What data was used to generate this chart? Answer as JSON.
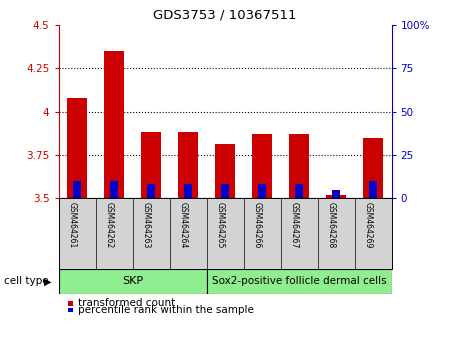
{
  "title": "GDS3753 / 10367511",
  "categories": [
    "GSM464261",
    "GSM464262",
    "GSM464263",
    "GSM464264",
    "GSM464265",
    "GSM464266",
    "GSM464267",
    "GSM464268",
    "GSM464269"
  ],
  "transformed_count": [
    4.08,
    4.35,
    3.88,
    3.88,
    3.81,
    3.87,
    3.87,
    3.52,
    3.85
  ],
  "percentile_rank": [
    10,
    10,
    8,
    8,
    8,
    8,
    8,
    5,
    10
  ],
  "bar_bottom": 3.5,
  "ylim_left": [
    3.5,
    4.5
  ],
  "ylim_right": [
    0,
    100
  ],
  "yticks_left": [
    3.5,
    3.75,
    4.0,
    4.25,
    4.5
  ],
  "yticks_right": [
    0,
    25,
    50,
    75,
    100
  ],
  "ytick_labels_left": [
    "3.5",
    "3.75",
    "4",
    "4.25",
    "4.5"
  ],
  "ytick_labels_right": [
    "0",
    "25",
    "50",
    "75",
    "100%"
  ],
  "left_color": "#cc0000",
  "right_color": "#0000cc",
  "bar_width": 0.55,
  "blue_bar_width": 0.22,
  "skp_range": [
    0,
    3
  ],
  "sox2_range": [
    4,
    8
  ],
  "cell_type_skp": "SKP",
  "cell_type_sox2": "Sox2-positive follicle dermal cells",
  "cell_type_color": "#90ee90",
  "cell_type_label": "cell type",
  "legend_red_label": "transformed count",
  "legend_blue_label": "percentile rank within the sample",
  "tick_label_area_color": "#d3d3d3",
  "grid_dotted_at": [
    3.75,
    4.0,
    4.25
  ]
}
